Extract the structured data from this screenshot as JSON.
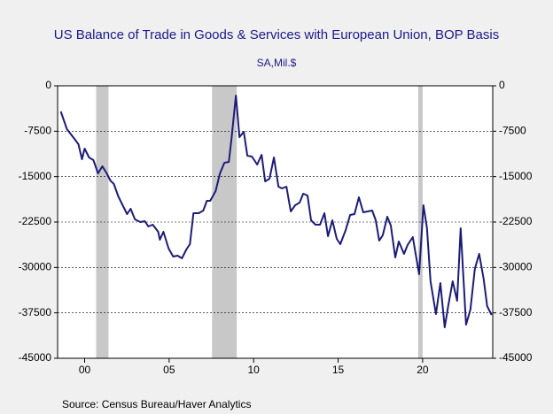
{
  "chart_data": {
    "type": "line",
    "title": "US Balance of Trade in Goods & Services with European Union, BOP Basis",
    "subtitle": "SA,Mil.$",
    "source": "Source:  Census Bureau/Haver Analytics",
    "xlim": [
      1998.4,
      2024.15
    ],
    "xticks": [
      {
        "value": 2000,
        "label": "00"
      },
      {
        "value": 2005,
        "label": "05"
      },
      {
        "value": 2010,
        "label": "10"
      },
      {
        "value": 2015,
        "label": "15"
      },
      {
        "value": 2020,
        "label": "20"
      }
    ],
    "ylim": [
      -45000,
      0
    ],
    "yticks": [
      0,
      -7500,
      -15000,
      -22500,
      -30000,
      -37500,
      -45000
    ],
    "y2lim": [
      -45000,
      0
    ],
    "y2ticks": [
      0,
      -7500,
      -15000,
      -22500,
      -30000,
      -37500,
      -45000
    ],
    "grid": true,
    "recession_color": "#c8c8c8",
    "recessions": [
      [
        2000.68,
        2001.41
      ],
      [
        2007.54,
        2009.0
      ],
      [
        2019.74,
        2020.0
      ]
    ],
    "series": [
      {
        "color": "#1c1c78",
        "x": [
          1998.59,
          1998.95,
          1999.32,
          1999.63,
          1999.84,
          2000.0,
          2000.26,
          2000.52,
          2000.79,
          2001.05,
          2001.31,
          2001.52,
          2001.73,
          2001.99,
          2002.25,
          2002.51,
          2002.72,
          2002.98,
          2003.3,
          2003.56,
          2003.77,
          2004.03,
          2004.35,
          2004.45,
          2004.66,
          2004.97,
          2005.24,
          2005.5,
          2005.76,
          2006.02,
          2006.23,
          2006.44,
          2006.75,
          2007.02,
          2007.23,
          2007.43,
          2007.75,
          2008.01,
          2008.27,
          2008.53,
          2008.69,
          2008.95,
          2009.16,
          2009.42,
          2009.63,
          2009.9,
          2010.21,
          2010.47,
          2010.68,
          2010.94,
          2011.2,
          2011.47,
          2011.68,
          2011.94,
          2012.2,
          2012.46,
          2012.72,
          2012.93,
          2013.19,
          2013.4,
          2013.66,
          2013.93,
          2014.19,
          2014.4,
          2014.66,
          2014.92,
          2015.13,
          2015.45,
          2015.71,
          2015.97,
          2016.23,
          2016.49,
          2016.75,
          2017.02,
          2017.23,
          2017.43,
          2017.64,
          2017.91,
          2018.12,
          2018.38,
          2018.59,
          2018.9,
          2019.11,
          2019.42,
          2019.79,
          2020.05,
          2020.26,
          2020.47,
          2020.79,
          2021.05,
          2021.31,
          2021.52,
          2021.78,
          2022.04,
          2022.25,
          2022.57,
          2022.83,
          2023.09,
          2023.35,
          2023.61,
          2023.82,
          2024.08
        ],
        "values": [
          -4240,
          -7160,
          -8470,
          -9640,
          -12130,
          -10370,
          -11830,
          -12270,
          -14460,
          -13290,
          -14460,
          -15630,
          -16220,
          -18260,
          -19720,
          -21190,
          -20310,
          -22060,
          -22500,
          -22350,
          -23230,
          -22940,
          -24110,
          -25420,
          -24110,
          -26880,
          -28200,
          -28050,
          -28490,
          -27030,
          -26150,
          -21040,
          -21040,
          -20600,
          -18990,
          -18990,
          -17390,
          -14460,
          -12710,
          -12560,
          -8770,
          -1610,
          -8470,
          -7600,
          -11540,
          -11690,
          -13000,
          -11400,
          -15780,
          -15340,
          -11830,
          -16660,
          -16950,
          -16660,
          -20750,
          -19720,
          -19280,
          -17830,
          -18120,
          -22210,
          -22940,
          -22940,
          -21040,
          -24840,
          -22210,
          -25280,
          -26150,
          -23810,
          -21330,
          -21190,
          -18410,
          -20890,
          -20750,
          -20600,
          -22210,
          -25570,
          -24690,
          -21630,
          -23080,
          -28340,
          -25710,
          -27760,
          -26300,
          -24980,
          -31120,
          -19720,
          -23520,
          -32290,
          -37700,
          -32580,
          -39890,
          -36230,
          -32290,
          -35500,
          -23520,
          -39450,
          -36960,
          -30240,
          -27760,
          -31850,
          -36380,
          -37840
        ]
      }
    ]
  }
}
